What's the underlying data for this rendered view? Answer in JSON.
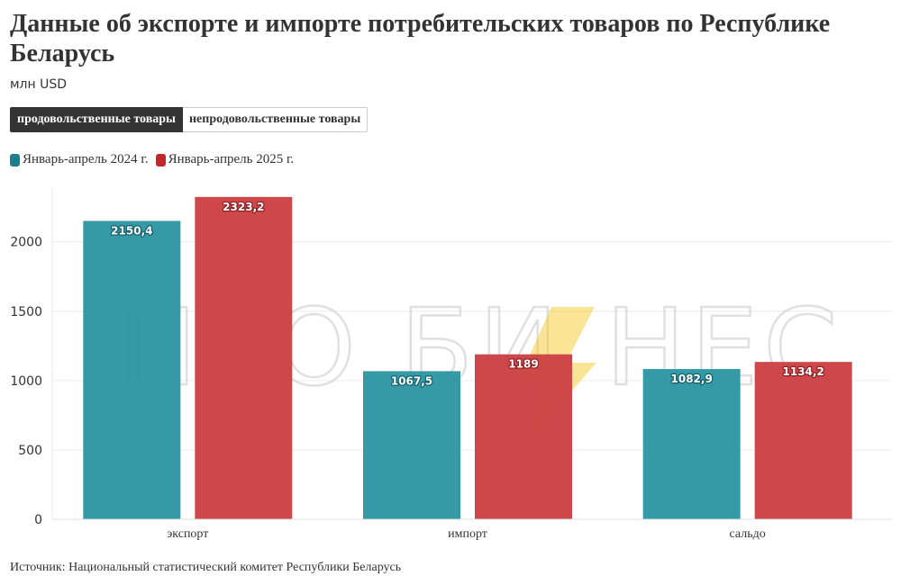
{
  "title": "Данные об экспорте и импорте потребительских товаров по Республике Беларусь",
  "subtitle": "млн USD",
  "tabs": [
    {
      "label": "продовольственные товары",
      "active": true
    },
    {
      "label": "непродовольственные товары",
      "active": false
    }
  ],
  "watermark": {
    "left": "ПРО БИ",
    "right": "НЕС",
    "bolt_color": "#f5c518"
  },
  "chart_data": {
    "type": "bar",
    "categories": [
      "экспорт",
      "импорт",
      "сальдо"
    ],
    "series": [
      {
        "name": "Январь-апрель 2024 г.",
        "color": "#2e96a3",
        "values": [
          2150.4,
          1067.5,
          1082.9
        ],
        "labels": [
          "2150,4",
          "1067,5",
          "1082,9"
        ]
      },
      {
        "name": "Январь-апрель 2025 г.",
        "color": "#cc4245",
        "values": [
          2323.2,
          1189,
          1134.2
        ],
        "labels": [
          "2323,2",
          "1189",
          "1134,2"
        ]
      }
    ],
    "legend_swatch_colors": [
      "#1b7f8c",
      "#c0282b"
    ],
    "yticks": [
      0,
      500,
      1000,
      1500,
      2000
    ],
    "ylim": [
      0,
      2400
    ],
    "grid": true,
    "legend_position": "top-left"
  },
  "source": "Источник: Национальный статистический комитет Республики Беларусь"
}
